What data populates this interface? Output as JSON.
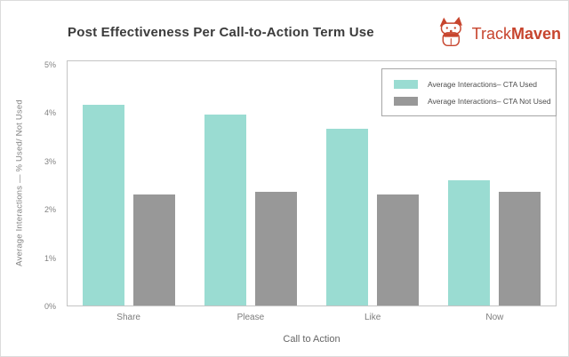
{
  "header": {
    "title": "Post Effectiveness Per Call-to-Action Term Use",
    "logo": {
      "brand_first": "Track",
      "brand_second": "Maven",
      "icon": "corgi-dog-icon",
      "brand_color": "#c7452e"
    }
  },
  "chart_data": {
    "type": "bar",
    "title": "Post Effectiveness Per Call-to-Action Term Use",
    "categories": [
      "Share",
      "Please",
      "Like",
      "Now"
    ],
    "series": [
      {
        "name": "Average Interactions– CTA Used",
        "color": "#9adcd2",
        "values": [
          4.15,
          3.95,
          3.65,
          2.6
        ]
      },
      {
        "name": "Average Interactions– CTA Not Used",
        "color": "#989898",
        "values": [
          2.3,
          2.35,
          2.3,
          2.35
        ]
      }
    ],
    "xlabel": "Call to Action",
    "ylabel": "Average Interactions — % Used/ Not Used",
    "ylim": [
      0,
      5
    ],
    "yticks": [
      "5%",
      "4%",
      "3%",
      "2%",
      "1%",
      "0%"
    ],
    "grid": false,
    "legend_position": "top-right",
    "plot_border_color": "#c4c4c4"
  }
}
